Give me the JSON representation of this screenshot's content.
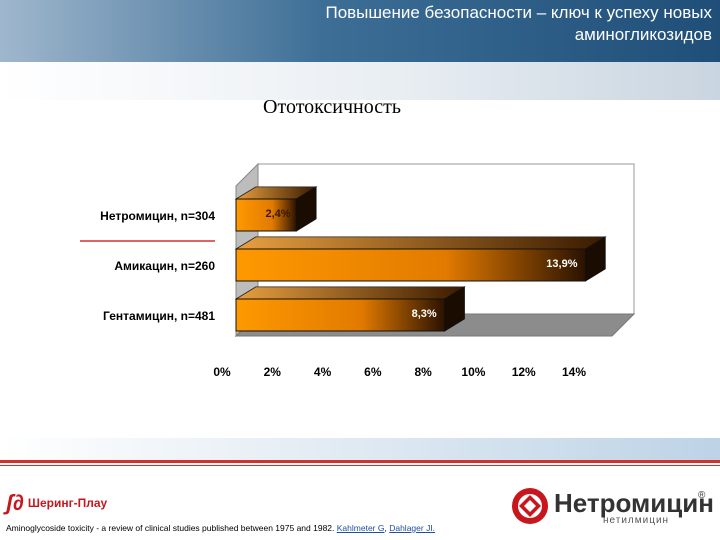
{
  "header": {
    "title_line1": "Повышение безопасности – ключ к успеху новых",
    "title_line2": "аминогликозидов"
  },
  "slide_title": "Ототоксичность",
  "chart_data": {
    "type": "bar",
    "orientation": "horizontal",
    "style": "3d",
    "categories": [
      "Нетромицин, n=304",
      "Амикацин, n=260",
      "Гентамицин, n=481"
    ],
    "values": [
      2.4,
      13.9,
      8.3
    ],
    "data_labels": [
      "2,4%",
      "13,9%",
      "8,3%"
    ],
    "x_ticks": [
      "0%",
      "2%",
      "4%",
      "6%",
      "8%",
      "10%",
      "12%",
      "14%"
    ],
    "xlim": [
      0,
      14
    ],
    "grid": false,
    "colors": {
      "bar_front": "#ff9900",
      "bar_dark": "#2b1200",
      "underline": "#d2312c"
    }
  },
  "footer": {
    "left_logo_mark": "ʃ∂",
    "left_logo_text": "Шеринг-Плау",
    "right_logo_text": "Нетромицин",
    "right_logo_reg": "®",
    "right_logo_sub": "нетилмицин",
    "citation_text": "Aminoglycoside toxicity - a review of clinical studies published between 1975 and 1982.",
    "citation_author1": "Kahlmeter G",
    "citation_sep": ", ",
    "citation_author2": "Dahlager JI."
  }
}
